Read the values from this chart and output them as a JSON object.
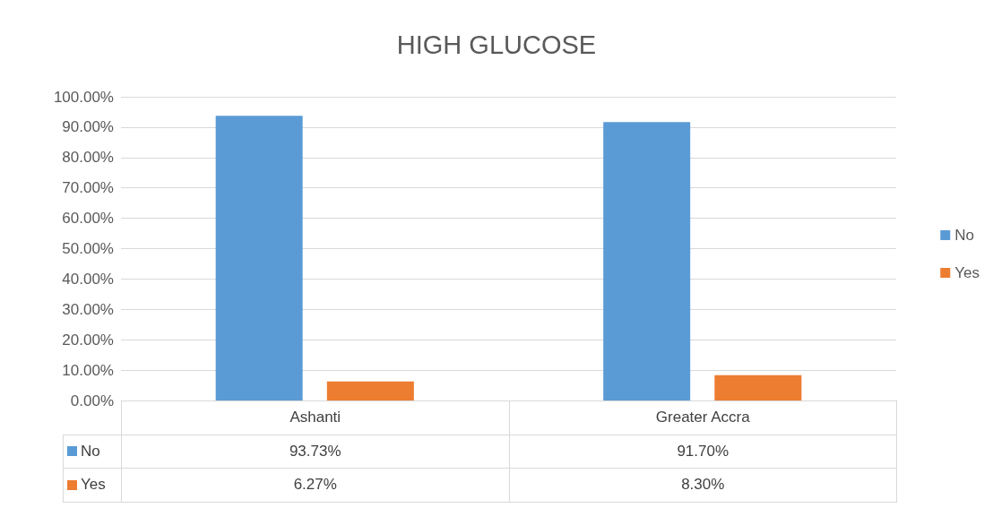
{
  "chart_data": {
    "type": "bar",
    "title": "HIGH GLUCOSE",
    "categories": [
      "Ashanti",
      "Greater Accra"
    ],
    "series": [
      {
        "name": "No",
        "color": "#5b9bd5",
        "values": [
          93.73,
          91.7
        ],
        "value_labels": [
          "93.73%",
          "91.70%"
        ]
      },
      {
        "name": "Yes",
        "color": "#ed7d31",
        "values": [
          6.27,
          8.3
        ],
        "value_labels": [
          "6.27%",
          "8.30%"
        ]
      }
    ],
    "ylim": [
      0,
      100
    ],
    "yticks": [
      {
        "value": 0,
        "label": "0.00%"
      },
      {
        "value": 10,
        "label": "10.00%"
      },
      {
        "value": 20,
        "label": "20.00%"
      },
      {
        "value": 30,
        "label": "30.00%"
      },
      {
        "value": 40,
        "label": "40.00%"
      },
      {
        "value": 50,
        "label": "50.00%"
      },
      {
        "value": 60,
        "label": "60.00%"
      },
      {
        "value": 70,
        "label": "70.00%"
      },
      {
        "value": 80,
        "label": "80.00%"
      },
      {
        "value": 90,
        "label": "90.00%"
      },
      {
        "value": 100,
        "label": "100.00%"
      }
    ],
    "grid": "y",
    "legend": "right"
  }
}
